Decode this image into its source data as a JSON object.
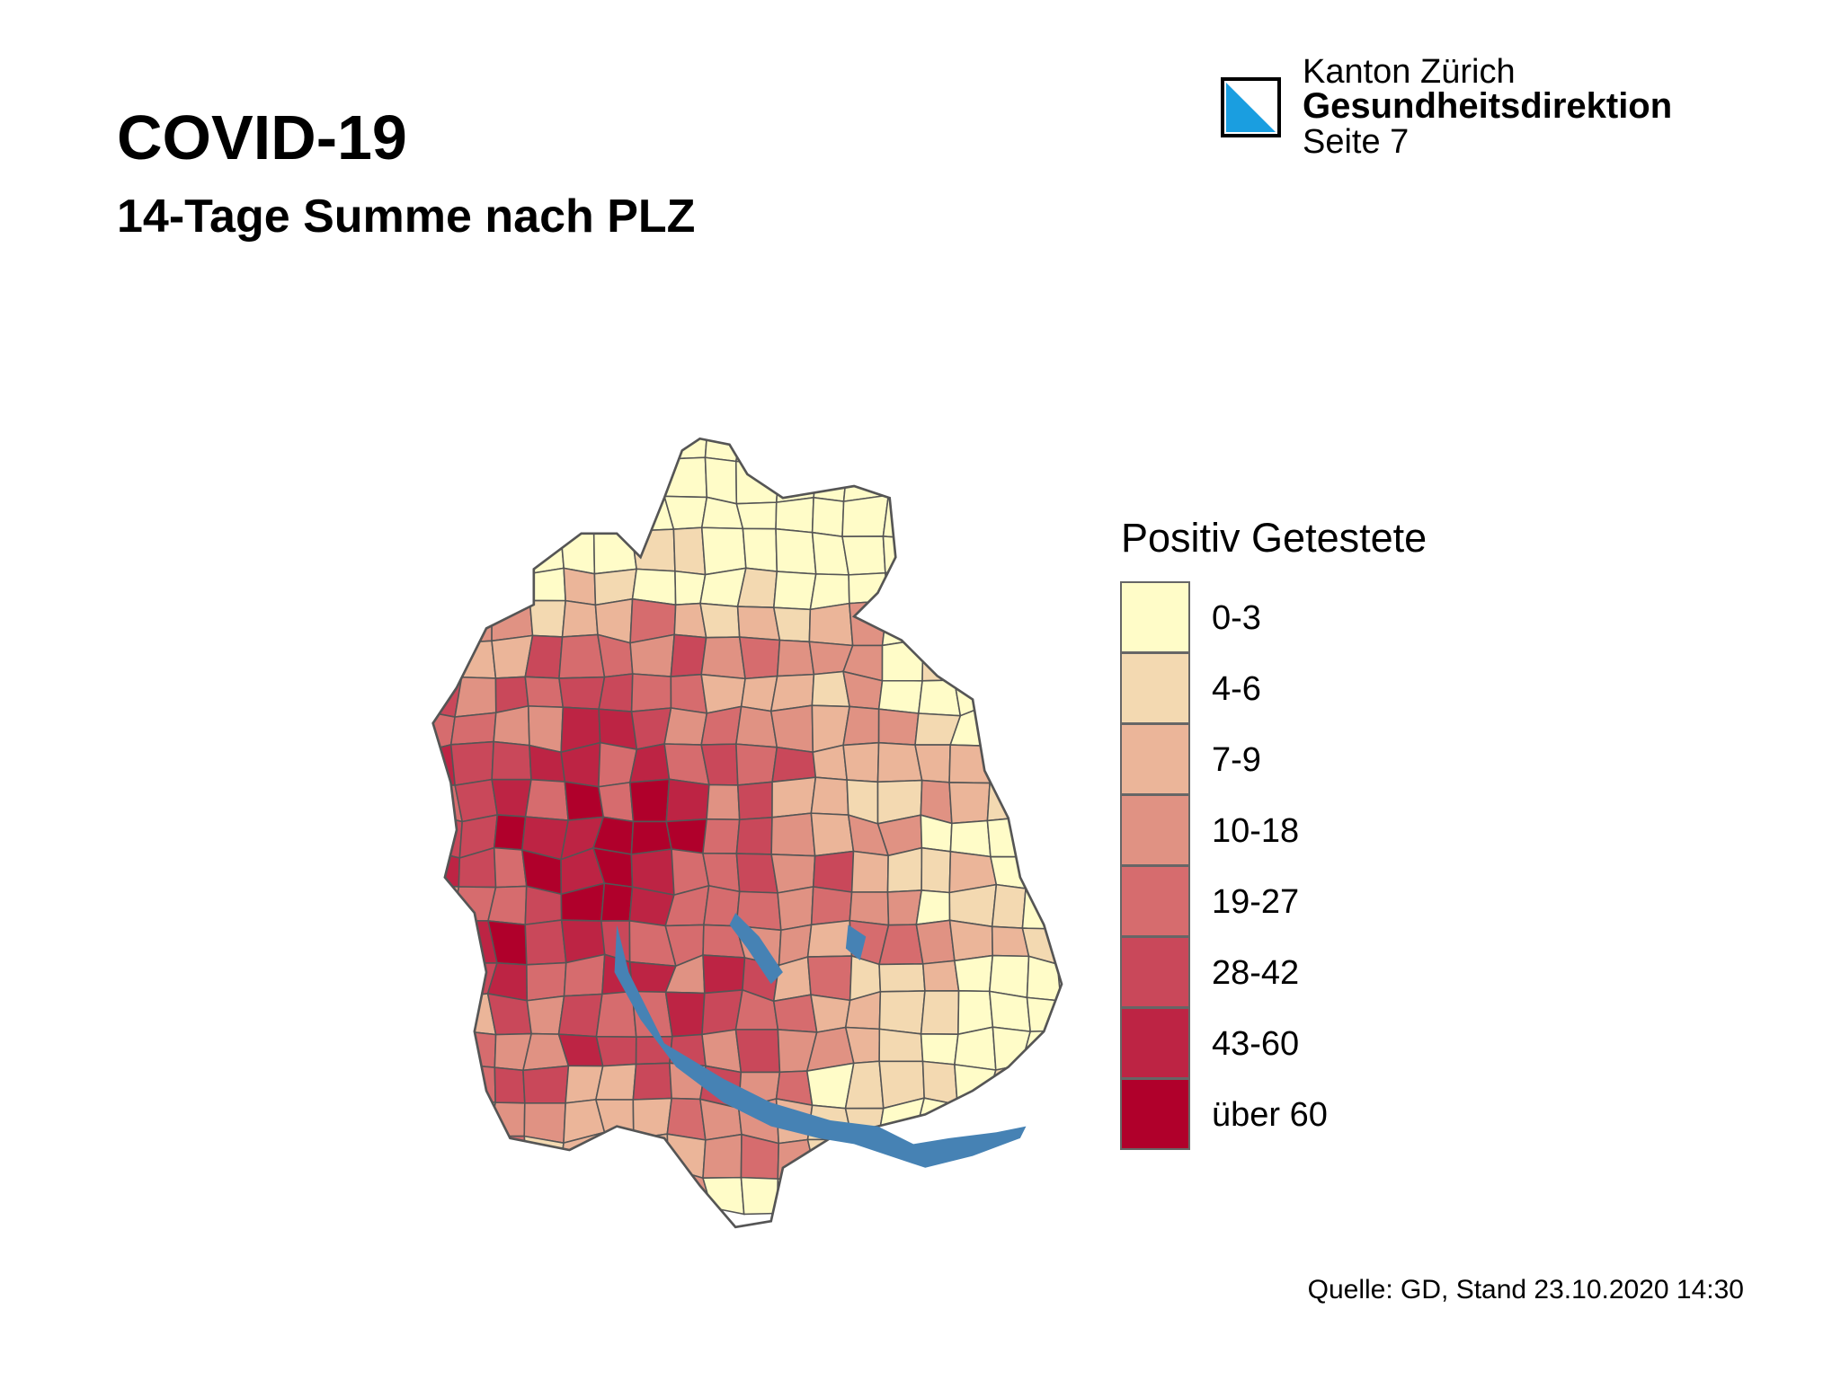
{
  "header": {
    "title": "COVID-19",
    "subtitle": "14-Tage Summe nach PLZ",
    "org_line1": "Kanton Zürich",
    "org_line2": "Gesundheitsdirektion",
    "page": "Seite 7"
  },
  "legend": {
    "title": "Positiv Getestete",
    "items": [
      {
        "label": "0-3",
        "color": "#fffcc8"
      },
      {
        "label": "4-6",
        "color": "#f3d9b1"
      },
      {
        "label": "7-9",
        "color": "#ebb599"
      },
      {
        "label": "10-18",
        "color": "#e09283"
      },
      {
        "label": "19-27",
        "color": "#d66c6e"
      },
      {
        "label": "28-42",
        "color": "#c9485a"
      },
      {
        "label": "43-60",
        "color": "#bd2444"
      },
      {
        "label": "über 60",
        "color": "#b0002b"
      }
    ]
  },
  "footer": {
    "source": "Quelle: GD, Stand 23.10.2020 14:30"
  }
}
